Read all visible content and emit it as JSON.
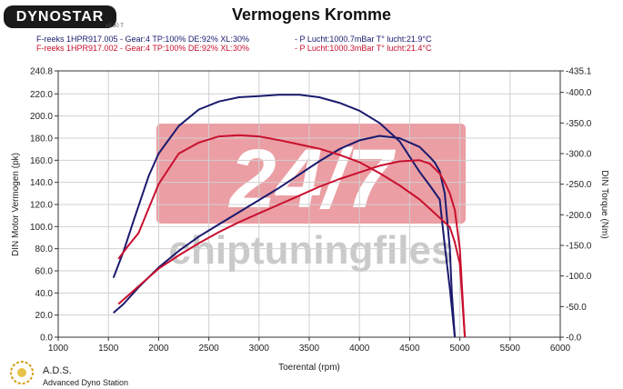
{
  "header": {
    "logo_text": "DYNOSTAR",
    "logo_sub": "v3.30 T",
    "title": "Vermogens Kromme",
    "run_a_info": "F-reeks 1HPR917.005 - Gear:4 TP:100% DE:92% XL:30%",
    "run_a_air": "- P Lucht:1000.7mBar T° lucht:21.9°C",
    "run_b_info": "F-reeks 1HPR917.002 - Gear:4 TP:100% DE:92% XL:30%",
    "run_b_air": "- P Lucht:1000.3mBar T° lucht:21.4°C"
  },
  "footer": {
    "brand": "A.D.S.",
    "brand_full": "Advanced Dyno Station"
  },
  "watermark": {
    "big": "24/7",
    "text": "chiptuningfiles"
  },
  "colors": {
    "run_a": "#1a1a6e",
    "run_b": "#c8102e",
    "watermark_box": "#e06a72",
    "watermark_text": "#b9b9b9"
  },
  "chart_data": {
    "type": "line",
    "title": "Vermogens Kromme",
    "xlabel": "Toerental (rpm)",
    "ylabel": "DIN Motor Vermogen (pk)",
    "y2label": "DIN Torque (Nm)",
    "xlim": [
      1000,
      6000
    ],
    "ylim": [
      0,
      240.8
    ],
    "y2lim": [
      0,
      435.1
    ],
    "x_ticks": [
      "1000",
      "1500",
      "2000",
      "2500",
      "3000",
      "3500",
      "4000",
      "4500",
      "5000",
      "5500",
      "6000"
    ],
    "y_ticks": [
      "0.0",
      "20.0",
      "40.0",
      "60.0",
      "80.0",
      "100.0",
      "120.0",
      "140.0",
      "160.0",
      "180.0",
      "200.0",
      "220.0",
      "240.8"
    ],
    "y2_ticks": [
      "-0.0",
      "-50.0",
      "-100.0",
      "-150.0",
      "-200.0",
      "-250.0",
      "-300.0",
      "-350.0",
      "-400.0",
      "-435.1"
    ],
    "grid": true,
    "series": [
      {
        "axis": "left",
        "run": "a",
        "x": [
          1550,
          1650,
          1800,
          2000,
          2200,
          2400,
          2600,
          2800,
          3000,
          3200,
          3400,
          3600,
          3800,
          4000,
          4200,
          4400,
          4600,
          4700,
          4750,
          4800,
          4850,
          4900,
          4920,
          4950
        ],
        "y": [
          22,
          30,
          45,
          63,
          78,
          91,
          102,
          113,
          124,
          135,
          147,
          159,
          170,
          178,
          182,
          180,
          172,
          163,
          158,
          150,
          130,
          80,
          40,
          0
        ]
      },
      {
        "axis": "right",
        "run": "a",
        "x": [
          1550,
          1650,
          1750,
          1900,
          2000,
          2200,
          2400,
          2600,
          2800,
          3000,
          3200,
          3400,
          3600,
          3800,
          4000,
          4200,
          4400,
          4600,
          4700,
          4800,
          4850,
          4900,
          4950
        ],
        "y": [
          97,
          140,
          190,
          263,
          300,
          345,
          372,
          385,
          392,
          394,
          396,
          396,
          392,
          383,
          370,
          350,
          320,
          270,
          248,
          225,
          150,
          80,
          0
        ]
      },
      {
        "axis": "left",
        "run": "b",
        "x": [
          1600,
          1700,
          1800,
          2000,
          2200,
          2400,
          2600,
          2800,
          3000,
          3200,
          3400,
          3600,
          3800,
          4000,
          4200,
          4400,
          4600,
          4700,
          4800,
          4850,
          4900,
          4950,
          5000,
          5050
        ],
        "y": [
          30,
          38,
          46,
          62,
          74,
          85,
          95,
          104,
          112,
          120,
          128,
          136,
          143,
          149,
          155,
          159,
          160,
          157,
          148,
          140,
          130,
          115,
          80,
          0
        ]
      },
      {
        "axis": "right",
        "run": "b",
        "x": [
          1600,
          1700,
          1800,
          2000,
          2200,
          2400,
          2600,
          2800,
          3000,
          3200,
          3400,
          3600,
          3800,
          4000,
          4200,
          4400,
          4600,
          4700,
          4800,
          4900,
          4950,
          5000,
          5050
        ],
        "y": [
          128,
          150,
          170,
          250,
          300,
          318,
          328,
          330,
          328,
          322,
          315,
          308,
          298,
          286,
          268,
          248,
          225,
          210,
          195,
          180,
          155,
          120,
          0
        ]
      }
    ]
  }
}
